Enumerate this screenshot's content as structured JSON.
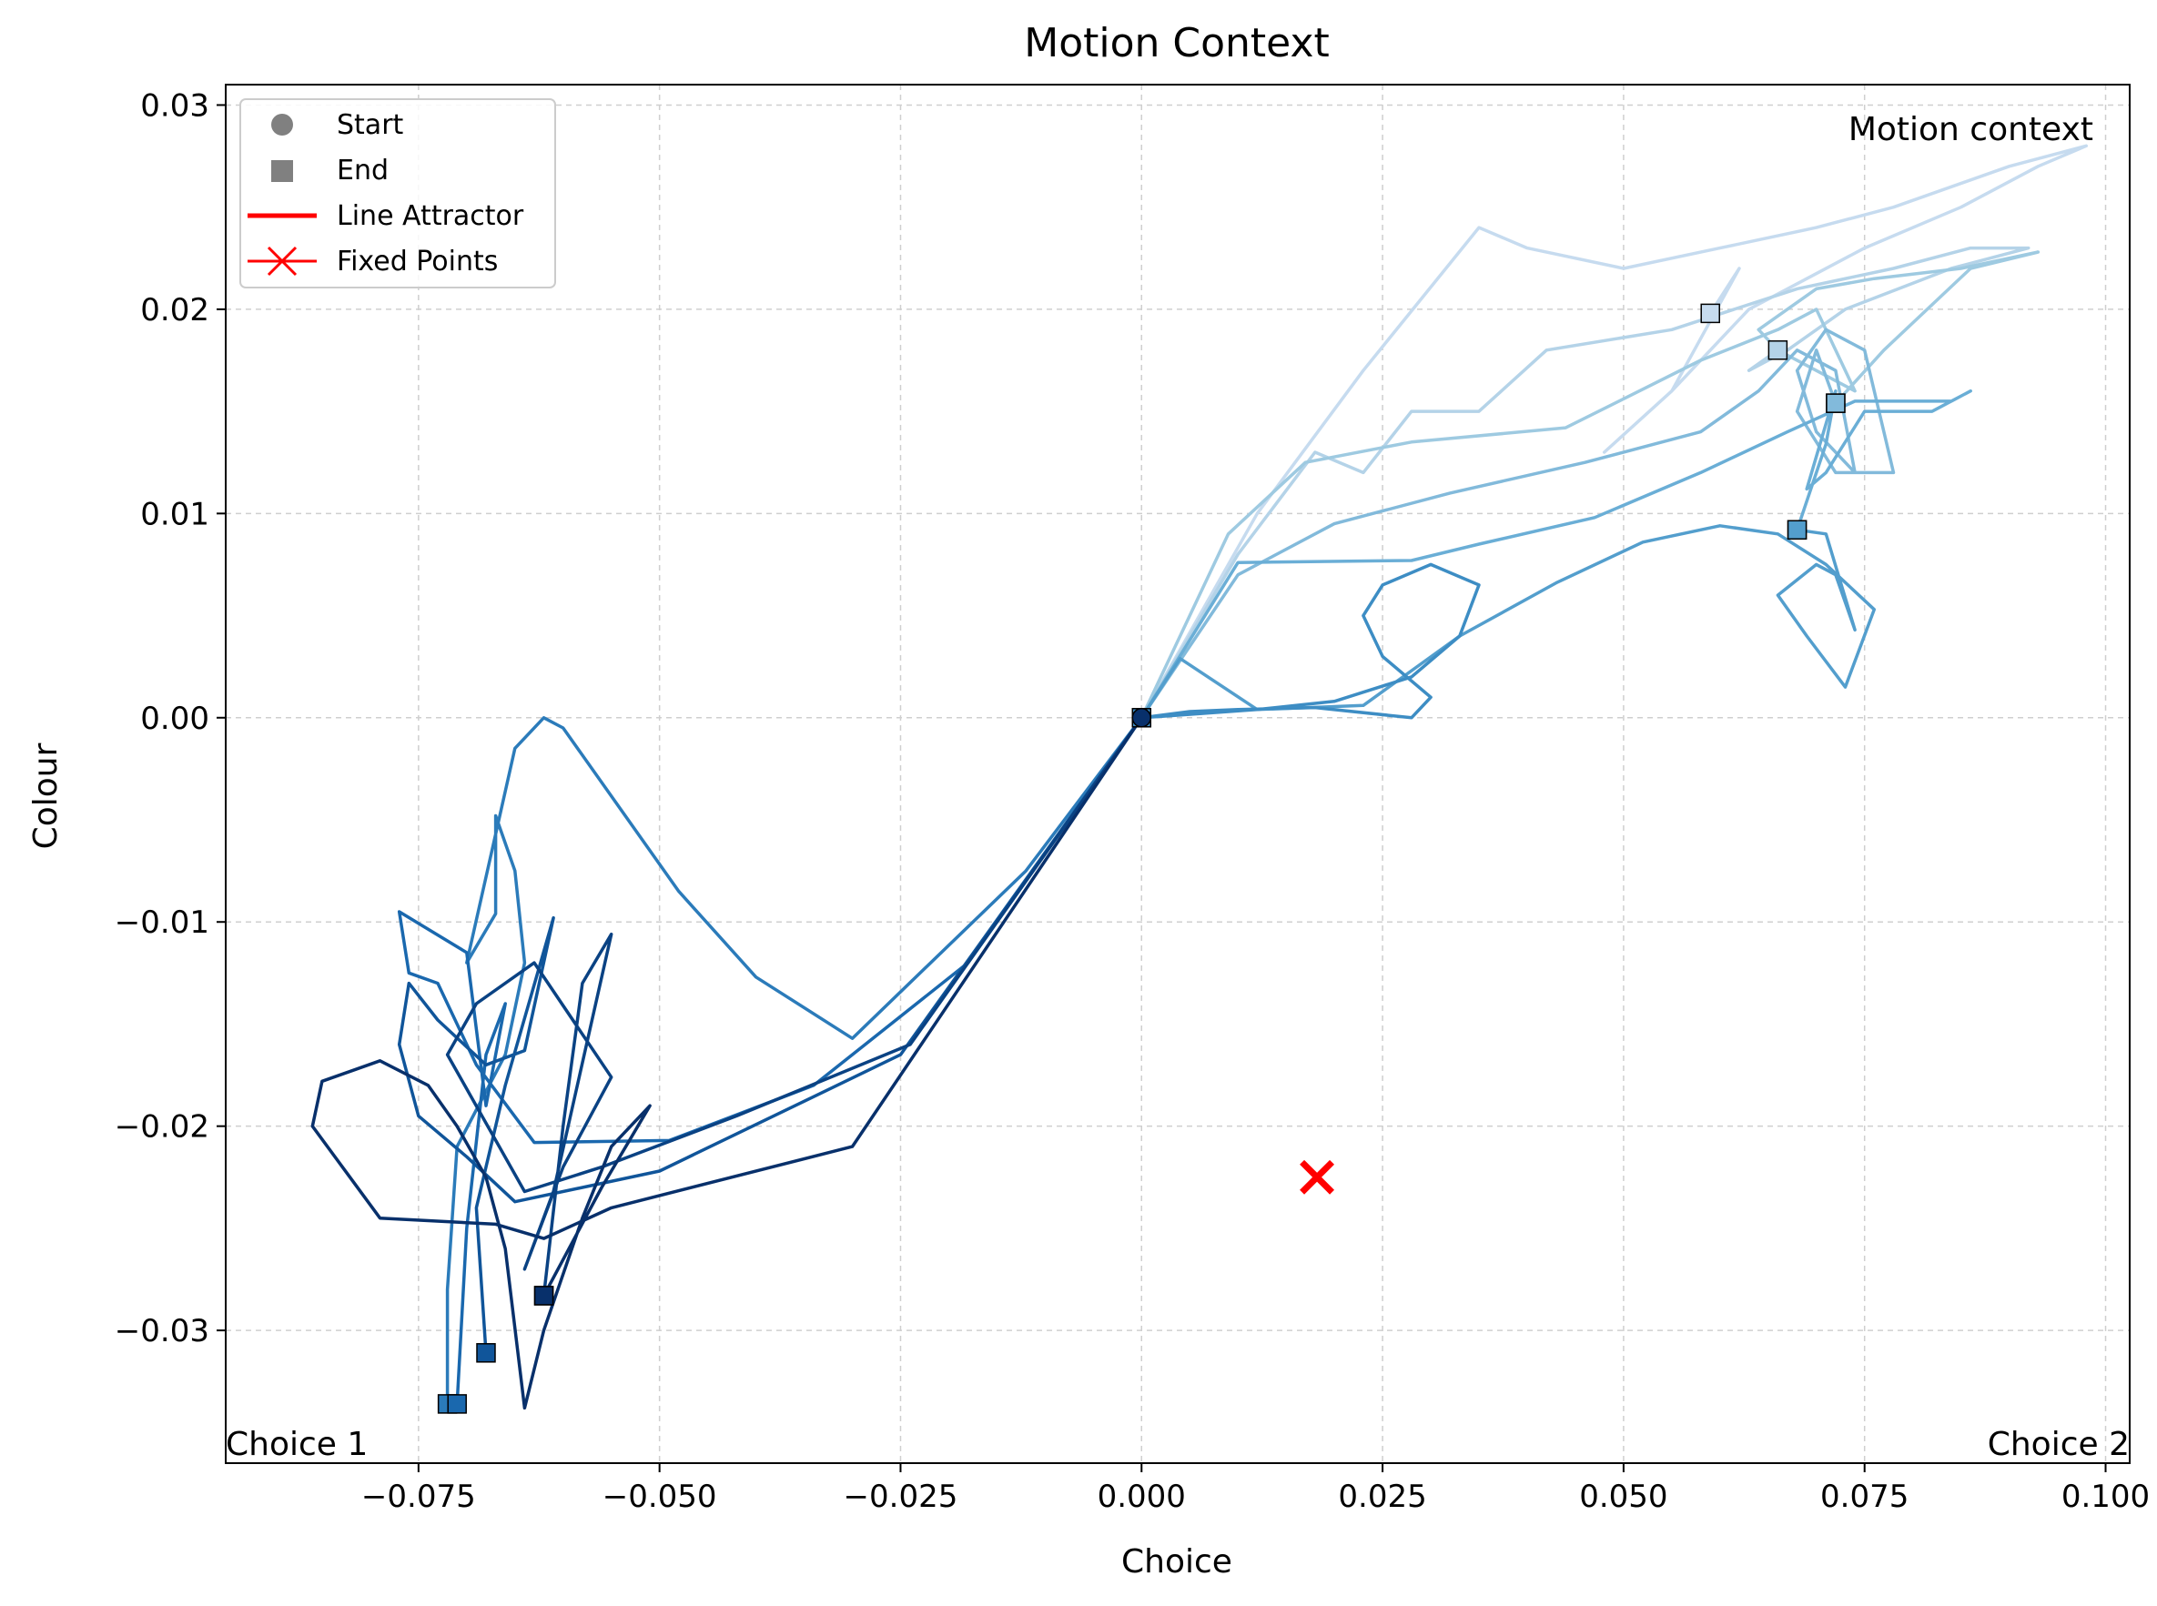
{
  "chart_data": {
    "type": "line",
    "title": "Motion Context",
    "xlabel": "Choice",
    "ylabel": "Colour",
    "xlim": [
      -0.095,
      0.1025
    ],
    "ylim": [
      -0.0365,
      0.031
    ],
    "xticks": [
      -0.075,
      -0.05,
      -0.025,
      0.0,
      0.025,
      0.05,
      0.075,
      0.1
    ],
    "xtick_labels": [
      "−0.075",
      "−0.050",
      "−0.025",
      "0.000",
      "0.025",
      "0.050",
      "0.075",
      "0.100"
    ],
    "yticks": [
      -0.03,
      -0.02,
      -0.01,
      0.0,
      0.01,
      0.02,
      0.03
    ],
    "ytick_labels": [
      "−0.03",
      "−0.02",
      "−0.01",
      "0.00",
      "0.01",
      "0.02",
      "0.03"
    ],
    "grid": true,
    "legend_position": "upper-left",
    "legend": [
      {
        "label": "Start",
        "marker": "circle",
        "color": "#808080"
      },
      {
        "label": "End",
        "marker": "square",
        "color": "#808080"
      },
      {
        "label": "Line Attractor",
        "marker": "line",
        "color": "#ff0000"
      },
      {
        "label": "Fixed Points",
        "marker": "x-line",
        "color": "#ff0000"
      }
    ],
    "annotations": [
      {
        "text": "Motion context",
        "anchor": "top-right"
      },
      {
        "text": "Choice 1",
        "anchor": "bottom-left"
      },
      {
        "text": "Choice 2",
        "anchor": "bottom-right"
      }
    ],
    "fixed_points": [
      {
        "x": 0.0182,
        "y": -0.0225,
        "color": "#ff0000"
      }
    ],
    "start_point": {
      "x": 0.0,
      "y": 0.0
    },
    "series": [
      {
        "color": "#c6dbef",
        "x": [
          0.0,
          0.012,
          0.023,
          0.035,
          0.04,
          0.05,
          0.06,
          0.07,
          0.078,
          0.09,
          0.098,
          0.093,
          0.085,
          0.075,
          0.063,
          0.055,
          0.048,
          0.055,
          0.062,
          0.059
        ],
        "y": [
          0.0,
          0.01,
          0.017,
          0.024,
          0.023,
          0.022,
          0.023,
          0.024,
          0.025,
          0.027,
          0.028,
          0.027,
          0.025,
          0.023,
          0.02,
          0.016,
          0.013,
          0.016,
          0.022,
          0.0198
        ]
      },
      {
        "color": "#b4d3e8",
        "x": [
          0.0,
          0.01,
          0.018,
          0.023,
          0.028,
          0.035,
          0.042,
          0.055,
          0.068,
          0.078,
          0.086,
          0.092,
          0.084,
          0.073,
          0.067,
          0.063,
          0.066
        ],
        "y": [
          0.0,
          0.008,
          0.013,
          0.012,
          0.015,
          0.015,
          0.018,
          0.019,
          0.021,
          0.022,
          0.023,
          0.023,
          0.022,
          0.02,
          0.018,
          0.017,
          0.018
        ]
      },
      {
        "color": "#9ecae1",
        "x": [
          0.0,
          0.009,
          0.017,
          0.028,
          0.044,
          0.058,
          0.066,
          0.07,
          0.072,
          0.074,
          0.066,
          0.064,
          0.07,
          0.076,
          0.085,
          0.093,
          0.086,
          0.077,
          0.072
        ],
        "y": [
          0.0,
          0.009,
          0.0125,
          0.0135,
          0.0142,
          0.0175,
          0.019,
          0.02,
          0.018,
          0.016,
          0.018,
          0.019,
          0.021,
          0.0215,
          0.022,
          0.0228,
          0.022,
          0.018,
          0.0154
        ]
      },
      {
        "color": "#82badb",
        "x": [
          0.0,
          0.01,
          0.02,
          0.032,
          0.046,
          0.058,
          0.064,
          0.068,
          0.072,
          0.074,
          0.07,
          0.068,
          0.071,
          0.075,
          0.078,
          0.072,
          0.068,
          0.07,
          0.072
        ],
        "y": [
          0.0,
          0.007,
          0.0095,
          0.011,
          0.0125,
          0.014,
          0.016,
          0.018,
          0.017,
          0.012,
          0.014,
          0.017,
          0.019,
          0.018,
          0.012,
          0.012,
          0.015,
          0.018,
          0.0154
        ]
      },
      {
        "color": "#6aaed6",
        "x": [
          0.0,
          0.01,
          0.028,
          0.035,
          0.047,
          0.058,
          0.067,
          0.074,
          0.084,
          0.086,
          0.082,
          0.075,
          0.071,
          0.069,
          0.072,
          0.071,
          0.068
        ],
        "y": [
          0.0,
          0.0076,
          0.0077,
          0.0085,
          0.0098,
          0.012,
          0.014,
          0.0155,
          0.0155,
          0.016,
          0.015,
          0.015,
          0.012,
          0.0112,
          0.016,
          0.0134,
          0.0092
        ]
      },
      {
        "color": "#539ecd",
        "x": [
          0.0,
          0.004,
          0.012,
          0.023,
          0.033,
          0.043,
          0.052,
          0.06,
          0.066,
          0.071,
          0.076,
          0.073,
          0.069,
          0.066,
          0.07,
          0.072,
          0.074,
          0.071,
          0.068
        ],
        "y": [
          0.0,
          0.0029,
          0.0004,
          0.0006,
          0.004,
          0.0066,
          0.0086,
          0.0094,
          0.009,
          0.0075,
          0.0053,
          0.0015,
          0.004,
          0.006,
          0.0075,
          0.007,
          0.0043,
          0.009,
          0.0092
        ]
      },
      {
        "color": "#3d8dc4",
        "x": [
          0.0,
          0.012,
          0.02,
          0.028,
          0.033,
          0.035,
          0.03,
          0.025,
          0.023,
          0.025,
          0.03,
          0.028,
          0.018,
          0.01,
          0.005,
          0.0
        ],
        "y": [
          0.0,
          0.0004,
          0.0008,
          0.002,
          0.004,
          0.0065,
          0.0075,
          0.0065,
          0.005,
          0.003,
          0.001,
          0.0,
          0.0005,
          0.0004,
          0.0003,
          0.0
        ]
      },
      {
        "color": "#2b7bba",
        "x": [
          0.0,
          -0.012,
          -0.03,
          -0.04,
          -0.048,
          -0.06,
          -0.062,
          -0.065,
          -0.07,
          -0.067,
          -0.067,
          -0.065,
          -0.064,
          -0.066,
          -0.071,
          -0.072,
          -0.072
        ],
        "y": [
          0.0,
          -0.0075,
          -0.0157,
          -0.0127,
          -0.0085,
          -0.0005,
          0.0,
          -0.0015,
          -0.012,
          -0.0096,
          -0.0048,
          -0.0075,
          -0.012,
          -0.0165,
          -0.021,
          -0.028,
          -0.0336
        ]
      },
      {
        "color": "#1a68ae",
        "x": [
          0.0,
          -0.018,
          -0.034,
          -0.049,
          -0.063,
          -0.069,
          -0.073,
          -0.076,
          -0.077,
          -0.07,
          -0.068,
          -0.066,
          -0.068,
          -0.07,
          -0.071
        ],
        "y": [
          0.0,
          -0.012,
          -0.018,
          -0.0207,
          -0.0208,
          -0.017,
          -0.013,
          -0.0125,
          -0.0095,
          -0.0115,
          -0.019,
          -0.014,
          -0.0165,
          -0.025,
          -0.0336
        ]
      },
      {
        "color": "#10559a",
        "x": [
          0.0,
          -0.025,
          -0.05,
          -0.065,
          -0.07,
          -0.075,
          -0.077,
          -0.076,
          -0.073,
          -0.068,
          -0.064,
          -0.061,
          -0.066,
          -0.069,
          -0.068
        ],
        "y": [
          0.0,
          -0.0165,
          -0.0222,
          -0.0237,
          -0.0215,
          -0.0195,
          -0.016,
          -0.013,
          -0.0148,
          -0.017,
          -0.0163,
          -0.0098,
          -0.018,
          -0.024,
          -0.0311
        ]
      },
      {
        "color": "#0a4283",
        "x": [
          0.0,
          -0.024,
          -0.042,
          -0.056,
          -0.064,
          -0.072,
          -0.069,
          -0.063,
          -0.055,
          -0.06,
          -0.064,
          -0.061,
          -0.055,
          -0.058,
          -0.06,
          -0.062
        ],
        "y": [
          0.0,
          -0.016,
          -0.0195,
          -0.022,
          -0.0232,
          -0.0165,
          -0.014,
          -0.012,
          -0.0176,
          -0.022,
          -0.027,
          -0.0232,
          -0.0106,
          -0.013,
          -0.02,
          -0.0283
        ]
      },
      {
        "color": "#08306b",
        "x": [
          0.0,
          -0.03,
          -0.055,
          -0.062,
          -0.067,
          -0.079,
          -0.086,
          -0.085,
          -0.079,
          -0.074,
          -0.071,
          -0.068,
          -0.066,
          -0.064,
          -0.062,
          -0.058,
          -0.055,
          -0.051,
          -0.056,
          -0.062
        ],
        "y": [
          0.0,
          -0.021,
          -0.024,
          -0.0255,
          -0.0248,
          -0.0245,
          -0.02,
          -0.0178,
          -0.0168,
          -0.018,
          -0.02,
          -0.0225,
          -0.026,
          -0.0338,
          -0.03,
          -0.0245,
          -0.021,
          -0.019,
          -0.023,
          -0.0283
        ]
      }
    ]
  }
}
